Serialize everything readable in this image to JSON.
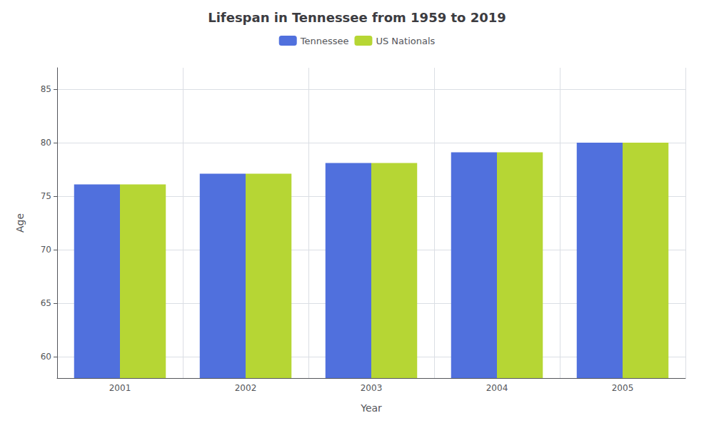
{
  "chart_data": {
    "type": "bar",
    "title": "Lifespan in Tennessee from 1959 to 2019",
    "xlabel": "Year",
    "ylabel": "Age",
    "categories": [
      "2001",
      "2002",
      "2003",
      "2004",
      "2005"
    ],
    "series": [
      {
        "name": "Tennessee",
        "values": [
          76.1,
          77.1,
          78.1,
          79.1,
          80.0
        ]
      },
      {
        "name": "US Nationals",
        "values": [
          76.1,
          77.1,
          78.1,
          79.1,
          80.0
        ]
      }
    ],
    "ylim": [
      58,
      87
    ],
    "yticks": [
      60,
      65,
      70,
      75,
      80,
      85
    ],
    "grid": true,
    "legend": "top"
  }
}
